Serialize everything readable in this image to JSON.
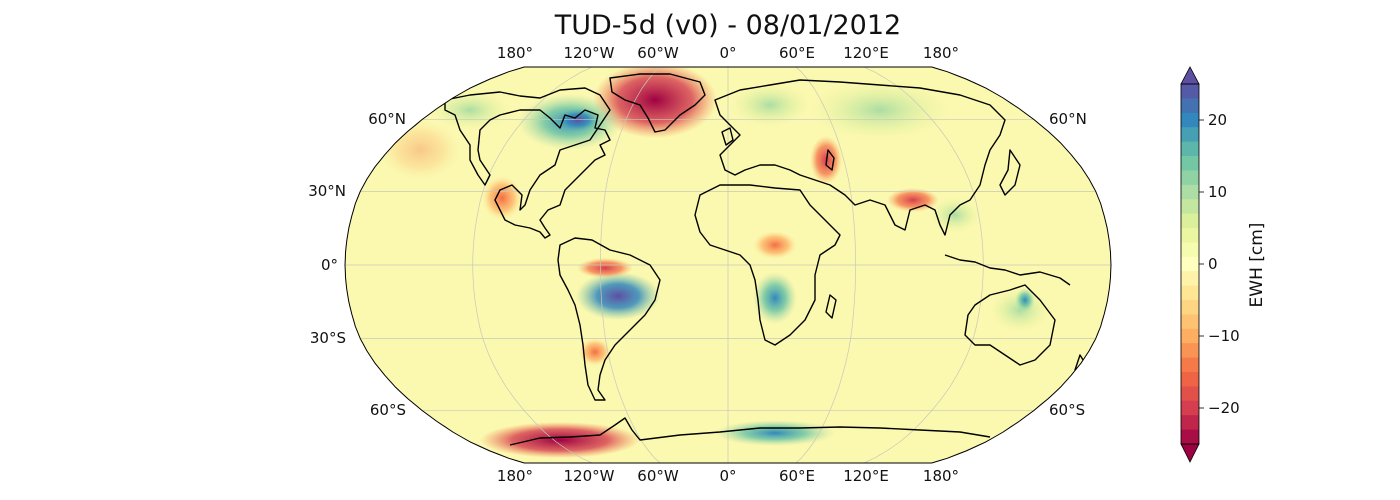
{
  "title": "TUD-5d (v0) - 08/01/2012",
  "map": {
    "projection": "Robinson",
    "top_lon_labels": [
      "180°",
      "120°W",
      "60°W",
      "0°",
      "60°E",
      "120°E",
      "180°"
    ],
    "bottom_lon_labels": [
      "180°",
      "120°W",
      "60°W",
      "0°",
      "60°E",
      "120°E",
      "180°"
    ],
    "left_lat_labels": [
      "60°N",
      "30°N",
      "0°",
      "30°S",
      "60°S"
    ],
    "right_lat_labels": [
      "60°N",
      "60°S"
    ],
    "gridlines": true,
    "background_color": "#fbf8b0",
    "anomalies": [
      {
        "region": "Greenland",
        "value": -25
      },
      {
        "region": "West Antarctica",
        "value": -25
      },
      {
        "region": "Northern Amazon",
        "value": -20
      },
      {
        "region": "Central South America",
        "value": 25
      },
      {
        "region": "Hudson Bay",
        "value": 20
      },
      {
        "region": "Southern Africa",
        "value": 15
      },
      {
        "region": "East Antarctica",
        "value": 15
      },
      {
        "region": "Caspian region",
        "value": -15
      },
      {
        "region": "Northern India",
        "value": -15
      },
      {
        "region": "Central Africa",
        "value": -12
      },
      {
        "region": "Southern Andes",
        "value": -12
      }
    ]
  },
  "colorbar": {
    "label": "EWH [cm]",
    "range": [
      -25,
      25
    ],
    "ticks": [
      20,
      10,
      0,
      -10,
      -20
    ],
    "tick_labels": [
      "20",
      "10",
      "0",
      "−10",
      "−20"
    ],
    "colormap": "Spectral",
    "extend": "both"
  }
}
